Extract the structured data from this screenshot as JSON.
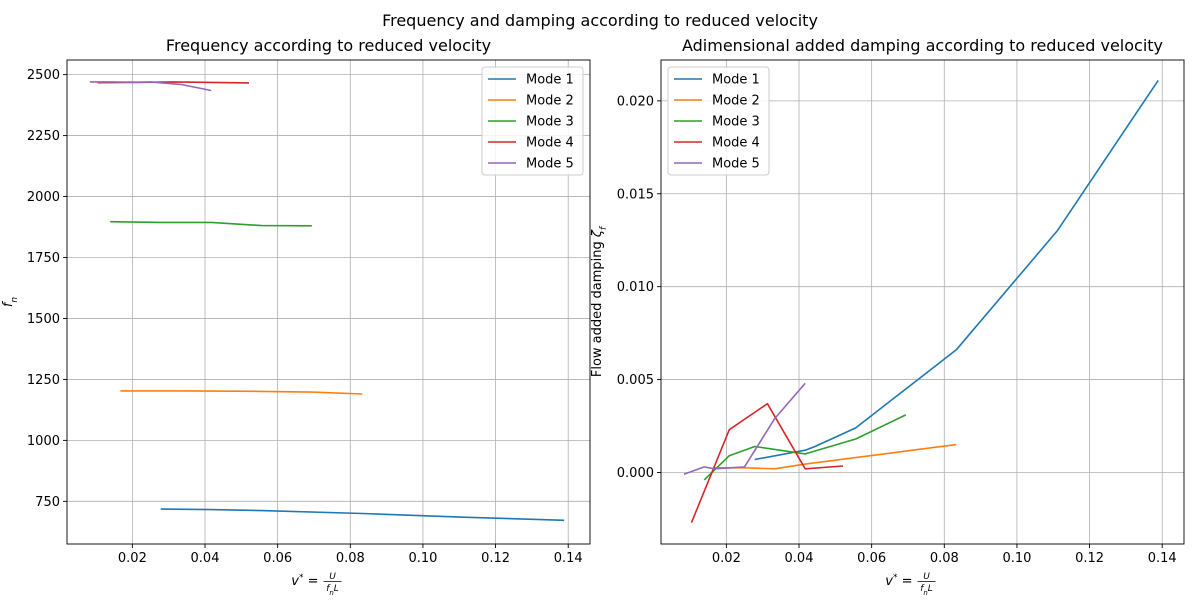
{
  "figure": {
    "suptitle": "Frequency and damping according to reduced velocity"
  },
  "chart_data": [
    {
      "type": "line",
      "title": "Frequency according to reduced velocity",
      "xlabel": "v* = U/(f_n L)",
      "ylabel": "f_n",
      "xlim": [
        0.002,
        0.146
      ],
      "ylim": [
        575,
        2560
      ],
      "xticks": [
        0.02,
        0.04,
        0.06,
        0.08,
        0.1,
        0.12,
        0.14
      ],
      "xtick_labels": [
        "0.02",
        "0.04",
        "0.06",
        "0.08",
        "0.10",
        "0.12",
        "0.14"
      ],
      "yticks": [
        750,
        1000,
        1250,
        1500,
        1750,
        2000,
        2250,
        2500
      ],
      "ytick_labels": [
        "750",
        "1000",
        "1250",
        "1500",
        "1750",
        "2000",
        "2250",
        "2500"
      ],
      "grid": true,
      "legend": "top-right",
      "series": [
        {
          "name": "Mode 1",
          "color": "#1f77b4",
          "x": [
            0.0278,
            0.0417,
            0.0556,
            0.0833,
            0.1111,
            0.1389
          ],
          "y": [
            718,
            716,
            712,
            700,
            685,
            672
          ]
        },
        {
          "name": "Mode 2",
          "color": "#ff7f0e",
          "x": [
            0.0167,
            0.025,
            0.0333,
            0.0417,
            0.0556,
            0.0694,
            0.0833
          ],
          "y": [
            1203,
            1203,
            1203,
            1202,
            1201,
            1198,
            1190
          ]
        },
        {
          "name": "Mode 3",
          "color": "#2ca02c",
          "x": [
            0.0139,
            0.0208,
            0.0278,
            0.0347,
            0.0417,
            0.0556,
            0.0694
          ],
          "y": [
            1897,
            1895,
            1894,
            1894,
            1894,
            1881,
            1880
          ]
        },
        {
          "name": "Mode 4",
          "color": "#d62728",
          "x": [
            0.0104,
            0.0208,
            0.0313,
            0.0417,
            0.0521
          ],
          "y": [
            2467,
            2468,
            2470,
            2468,
            2466
          ]
        },
        {
          "name": "Mode 5",
          "color": "#9467bd",
          "x": [
            0.0083,
            0.0139,
            0.0208,
            0.025,
            0.0333,
            0.0417
          ],
          "y": [
            2470,
            2470,
            2469,
            2470,
            2460,
            2435
          ]
        }
      ]
    },
    {
      "type": "line",
      "title": "Adimensional added damping according to reduced velocity",
      "xlabel": "v* = U/(f_n L)",
      "ylabel": "Flow added damping ζ_f",
      "xlim": [
        0.002,
        0.146
      ],
      "ylim": [
        -0.00385,
        0.0222
      ],
      "xticks": [
        0.02,
        0.04,
        0.06,
        0.08,
        0.1,
        0.12,
        0.14
      ],
      "xtick_labels": [
        "0.02",
        "0.04",
        "0.06",
        "0.08",
        "0.10",
        "0.12",
        "0.14"
      ],
      "yticks": [
        0.0,
        0.005,
        0.01,
        0.015,
        0.02
      ],
      "ytick_labels": [
        "0.000",
        "0.005",
        "0.010",
        "0.015",
        "0.020"
      ],
      "grid": true,
      "legend": "top-left",
      "series": [
        {
          "name": "Mode 1",
          "color": "#1f77b4",
          "x": [
            0.0278,
            0.0417,
            0.0444,
            0.0556,
            0.0833,
            0.1111,
            0.1389
          ],
          "y": [
            0.0007,
            0.0012,
            0.0014,
            0.0024,
            0.0066,
            0.013,
            0.0211
          ]
        },
        {
          "name": "Mode 2",
          "color": "#ff7f0e",
          "x": [
            0.0167,
            0.025,
            0.0333,
            0.0417,
            0.0556,
            0.0694,
            0.0833
          ],
          "y": [
            0.00025,
            0.00025,
            0.0002,
            0.00045,
            0.0008,
            0.00115,
            0.0015
          ]
        },
        {
          "name": "Mode 3",
          "color": "#2ca02c",
          "x": [
            0.0139,
            0.0208,
            0.0278,
            0.0347,
            0.0417,
            0.0556,
            0.0694
          ],
          "y": [
            -0.0004,
            0.0009,
            0.0014,
            0.0012,
            0.001,
            0.0018,
            0.0031
          ]
        },
        {
          "name": "Mode 4",
          "color": "#d62728",
          "x": [
            0.0104,
            0.0208,
            0.0313,
            0.0417,
            0.0521
          ],
          "y": [
            -0.0027,
            0.0023,
            0.0037,
            0.0002,
            0.00035
          ]
        },
        {
          "name": "Mode 5",
          "color": "#9467bd",
          "x": [
            0.0083,
            0.0139,
            0.0167,
            0.025,
            0.0333,
            0.0417
          ],
          "y": [
            -0.0001,
            0.0003,
            0.0002,
            0.0003,
            0.0029,
            0.0048
          ]
        }
      ]
    }
  ]
}
